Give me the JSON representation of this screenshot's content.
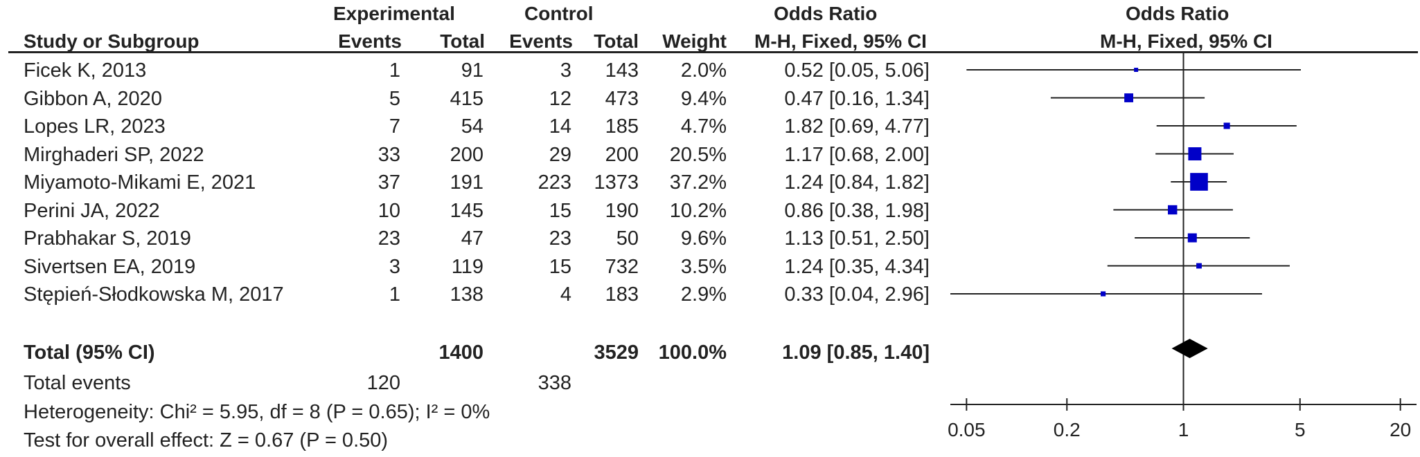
{
  "headers": {
    "study": "Study or Subgroup",
    "experimental": "Experimental",
    "control": "Control",
    "events": "Events",
    "total": "Total",
    "weight": "Weight",
    "or_table": "Odds Ratio",
    "or_table_method": "M-H, Fixed, 95% CI",
    "or_plot": "Odds Ratio",
    "or_plot_method": "M-H, Fixed, 95% CI"
  },
  "total_row": {
    "label": "Total (95% CI)",
    "exp_total": "1400",
    "ctrl_total": "3529",
    "weight": "100.0%",
    "ci": "1.09 [0.85, 1.40]"
  },
  "total_events": {
    "label": "Total events",
    "exp": "120",
    "ctrl": "338"
  },
  "heterogeneity": "Heterogeneity: Chi² = 5.95, df = 8 (P = 0.65); I² = 0%",
  "overall_effect": "Test for overall effect: Z = 0.67 (P = 0.50)",
  "colors": {
    "marker": "#0000c8",
    "line": "#222222",
    "diamond": "#000000"
  },
  "chart_data": {
    "type": "forest",
    "scale": "log",
    "xlim": [
      0.04,
      25
    ],
    "ticks": [
      {
        "value": 0.05,
        "label": "0.05"
      },
      {
        "value": 0.2,
        "label": "0.2"
      },
      {
        "value": 1,
        "label": "1"
      },
      {
        "value": 5,
        "label": "5"
      },
      {
        "value": 20,
        "label": "20"
      }
    ],
    "null_line": 1,
    "studies": [
      {
        "study": "Ficek K, 2013",
        "exp_events": "1",
        "exp_total": "91",
        "ctrl_events": "3",
        "ctrl_total": "143",
        "weight": "2.0%",
        "ci_text": "0.52 [0.05, 5.06]",
        "or": 0.52,
        "lo": 0.05,
        "hi": 5.06,
        "w": 2.0
      },
      {
        "study": "Gibbon A, 2020",
        "exp_events": "5",
        "exp_total": "415",
        "ctrl_events": "12",
        "ctrl_total": "473",
        "weight": "9.4%",
        "ci_text": "0.47 [0.16, 1.34]",
        "or": 0.47,
        "lo": 0.16,
        "hi": 1.34,
        "w": 9.4
      },
      {
        "study": "Lopes LR, 2023",
        "exp_events": "7",
        "exp_total": "54",
        "ctrl_events": "14",
        "ctrl_total": "185",
        "weight": "4.7%",
        "ci_text": "1.82 [0.69, 4.77]",
        "or": 1.82,
        "lo": 0.69,
        "hi": 4.77,
        "w": 4.7
      },
      {
        "study": "Mirghaderi SP, 2022",
        "exp_events": "33",
        "exp_total": "200",
        "ctrl_events": "29",
        "ctrl_total": "200",
        "weight": "20.5%",
        "ci_text": "1.17 [0.68, 2.00]",
        "or": 1.17,
        "lo": 0.68,
        "hi": 2.0,
        "w": 20.5
      },
      {
        "study": "Miyamoto-Mikami E, 2021",
        "exp_events": "37",
        "exp_total": "191",
        "ctrl_events": "223",
        "ctrl_total": "1373",
        "weight": "37.2%",
        "ci_text": "1.24 [0.84, 1.82]",
        "or": 1.24,
        "lo": 0.84,
        "hi": 1.82,
        "w": 37.2
      },
      {
        "study": "Perini JA, 2022",
        "exp_events": "10",
        "exp_total": "145",
        "ctrl_events": "15",
        "ctrl_total": "190",
        "weight": "10.2%",
        "ci_text": "0.86 [0.38, 1.98]",
        "or": 0.86,
        "lo": 0.38,
        "hi": 1.98,
        "w": 10.2
      },
      {
        "study": "Prabhakar S, 2019",
        "exp_events": "23",
        "exp_total": "47",
        "ctrl_events": "23",
        "ctrl_total": "50",
        "weight": "9.6%",
        "ci_text": "1.13 [0.51, 2.50]",
        "or": 1.13,
        "lo": 0.51,
        "hi": 2.5,
        "w": 9.6
      },
      {
        "study": "Sivertsen EA, 2019",
        "exp_events": "3",
        "exp_total": "119",
        "ctrl_events": "15",
        "ctrl_total": "732",
        "weight": "3.5%",
        "ci_text": "1.24 [0.35, 4.34]",
        "or": 1.24,
        "lo": 0.35,
        "hi": 4.34,
        "w": 3.5
      },
      {
        "study": "Stępień-Słodkowska M, 2017",
        "exp_events": "1",
        "exp_total": "138",
        "ctrl_events": "4",
        "ctrl_total": "183",
        "weight": "2.9%",
        "ci_text": "0.33 [0.04, 2.96]",
        "or": 0.33,
        "lo": 0.04,
        "hi": 2.96,
        "w": 2.9
      }
    ],
    "pooled": {
      "or": 1.09,
      "lo": 0.85,
      "hi": 1.4
    }
  }
}
